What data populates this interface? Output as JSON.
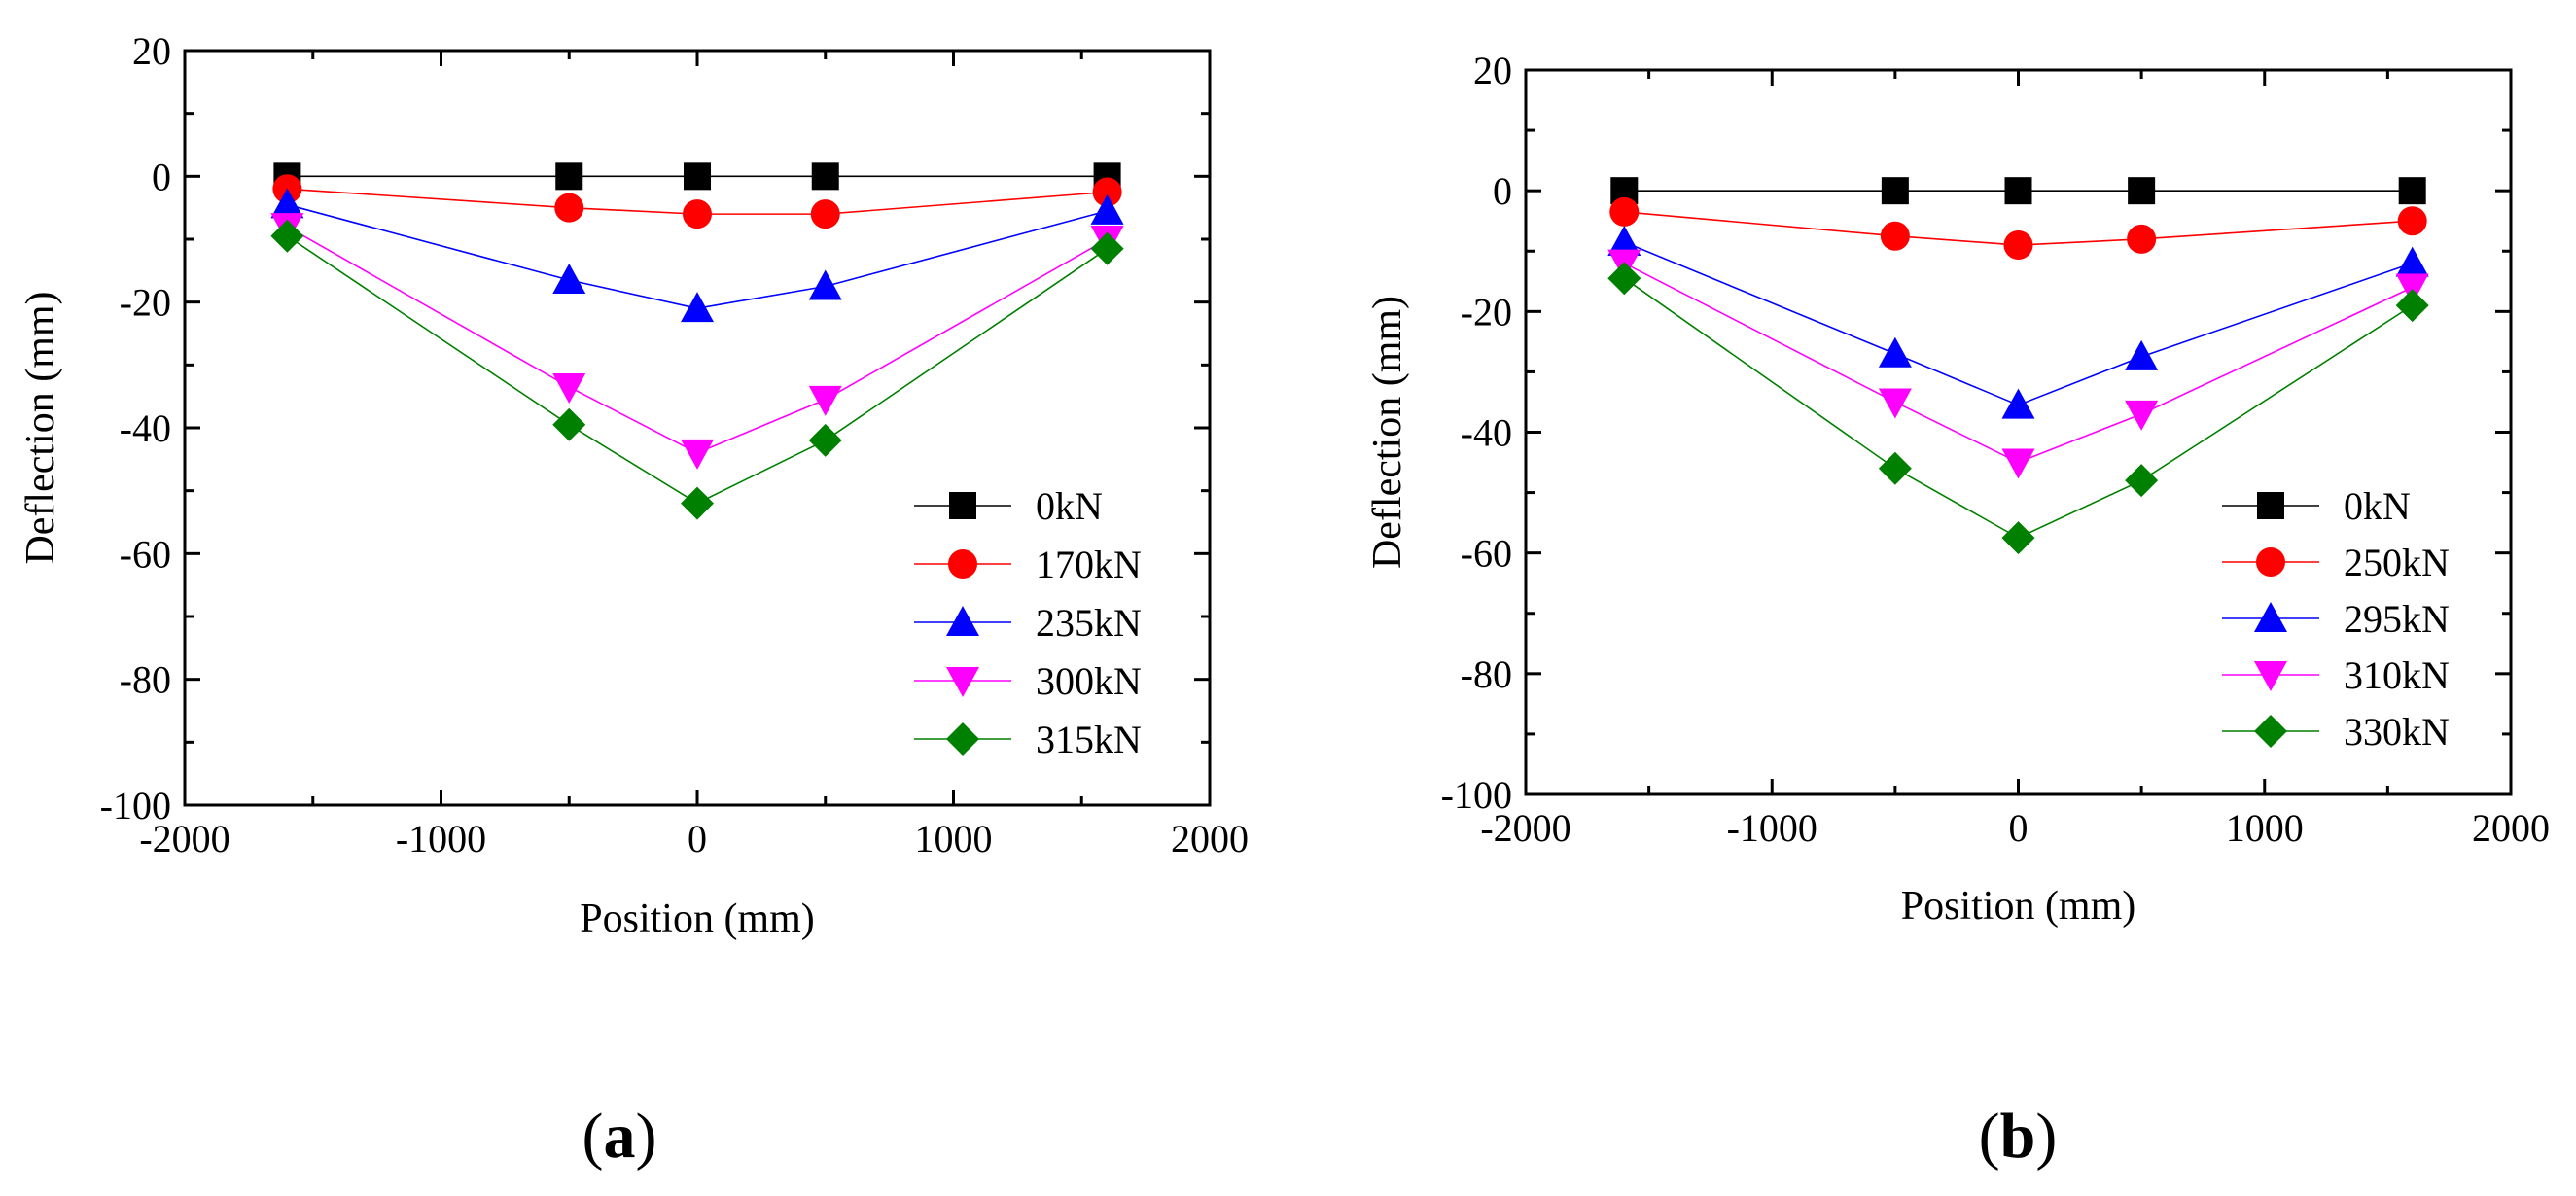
{
  "chart_data": [
    {
      "type": "line",
      "panel_label": "a",
      "xlabel": "Position (mm)",
      "ylabel": "Deflection (mm)",
      "xlim": [
        -2000,
        2000
      ],
      "ylim": [
        -100,
        20
      ],
      "xticks": [
        -2000,
        -1000,
        0,
        1000,
        2000
      ],
      "yticks": [
        20,
        0,
        -20,
        -40,
        -60,
        -80,
        -100
      ],
      "legend_position": "bottom-right",
      "x": [
        -1600,
        -500,
        0,
        500,
        1600
      ],
      "series": [
        {
          "name": "0kN",
          "color": "#000000",
          "marker": "square",
          "values": [
            0,
            0,
            0,
            0,
            0
          ]
        },
        {
          "name": "170kN",
          "color": "#ff0000",
          "marker": "circle",
          "values": [
            -2,
            -5,
            -6,
            -6,
            -2.5
          ]
        },
        {
          "name": "235kN",
          "color": "#0000ff",
          "marker": "triangle-up",
          "values": [
            -4.5,
            -16.5,
            -21,
            -17.5,
            -5.5
          ]
        },
        {
          "name": "300kN",
          "color": "#ff00ff",
          "marker": "triangle-down",
          "values": [
            -8,
            -33.5,
            -44,
            -35.5,
            -10
          ]
        },
        {
          "name": "315kN",
          "color": "#008000",
          "marker": "diamond",
          "values": [
            -9.5,
            -39.5,
            -52,
            -42,
            -11.5
          ]
        }
      ]
    },
    {
      "type": "line",
      "panel_label": "b",
      "xlabel": "Position (mm)",
      "ylabel": "Deflection (mm)",
      "xlim": [
        -2000,
        2000
      ],
      "ylim": [
        -100,
        20
      ],
      "xticks": [
        -2000,
        -1000,
        0,
        1000,
        2000
      ],
      "yticks": [
        20,
        0,
        -20,
        -40,
        -60,
        -80,
        -100
      ],
      "legend_position": "bottom-right",
      "x": [
        -1600,
        -500,
        0,
        500,
        1600
      ],
      "series": [
        {
          "name": "0kN",
          "color": "#000000",
          "marker": "square",
          "values": [
            0,
            0,
            0,
            0,
            0
          ]
        },
        {
          "name": "250kN",
          "color": "#ff0000",
          "marker": "circle",
          "values": [
            -3.5,
            -7.5,
            -9,
            -8,
            -5
          ]
        },
        {
          "name": "295kN",
          "color": "#0000ff",
          "marker": "triangle-up",
          "values": [
            -8.5,
            -27,
            -35.5,
            -27.5,
            -12
          ]
        },
        {
          "name": "310kN",
          "color": "#ff00ff",
          "marker": "triangle-down",
          "values": [
            -12,
            -35,
            -45,
            -37,
            -16
          ]
        },
        {
          "name": "330kN",
          "color": "#008000",
          "marker": "diamond",
          "values": [
            -14.5,
            -46,
            -57.5,
            -48,
            -19
          ]
        }
      ]
    }
  ]
}
